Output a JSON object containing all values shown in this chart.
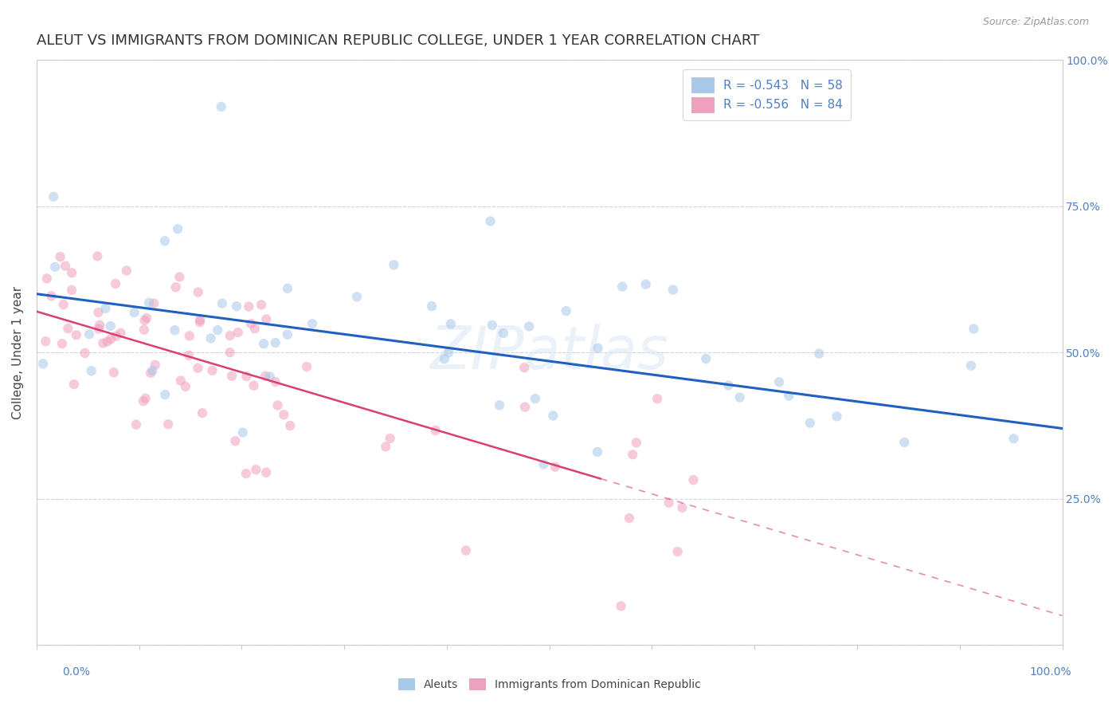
{
  "title": "ALEUT VS IMMIGRANTS FROM DOMINICAN REPUBLIC COLLEGE, UNDER 1 YEAR CORRELATION CHART",
  "source_text": "Source: ZipAtlas.com",
  "ylabel": "College, Under 1 year",
  "aleut_R": -0.543,
  "aleut_N": 58,
  "dr_R": -0.556,
  "dr_N": 84,
  "aleut_color": "#a8c8e8",
  "dr_color": "#f0a0bc",
  "aleut_line_color": "#2060c0",
  "dr_line_color": "#d84070",
  "watermark": "ZIPatlas",
  "background_color": "#ffffff",
  "grid_color": "#c8d0e0",
  "title_color": "#333333",
  "axis_label_color": "#5080c0",
  "scatter_alpha": 0.55,
  "scatter_size": 80,
  "legend_box_color": "#a8c8e8",
  "legend_box_color2": "#f0a0bc"
}
